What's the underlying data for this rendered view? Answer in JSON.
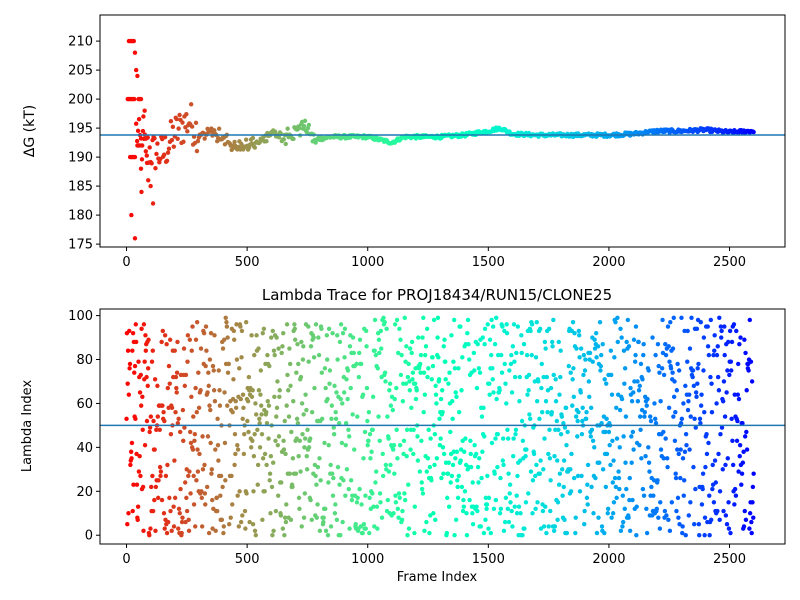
{
  "chart_data": [
    {
      "type": "scatter",
      "title": "",
      "xlabel": "",
      "ylabel": "ΔG (kT)",
      "xlim": [
        -110,
        2730
      ],
      "ylim": [
        174.5,
        214.5
      ],
      "x_ticks": [
        0,
        500,
        1000,
        1500,
        2000,
        2500
      ],
      "y_ticks": [
        175,
        180,
        185,
        190,
        195,
        200,
        205,
        210
      ],
      "x_tick_labels": [
        "0",
        "500",
        "1000",
        "1500",
        "2000",
        "2500"
      ],
      "y_tick_labels": [
        "175",
        "180",
        "185",
        "190",
        "195",
        "200",
        "205",
        "210"
      ],
      "reference_line": 193.8,
      "reference_color": "#1f77b4",
      "colormap": "rainbow (reversed: red at frame 0, violet at frame 2600)",
      "frame_range": [
        0,
        2600
      ],
      "grid": false,
      "series_trend": {
        "x": [
          0,
          30,
          60,
          100,
          150,
          200,
          260,
          300,
          350,
          400,
          450,
          500,
          550,
          600,
          650,
          700,
          740,
          780,
          850,
          900,
          1000,
          1050,
          1100,
          1150,
          1200,
          1300,
          1400,
          1500,
          1550,
          1600,
          1700,
          1800,
          1900,
          2000,
          2100,
          2200,
          2300,
          2400,
          2450,
          2500,
          2600
        ],
        "y": [
          200,
          196,
          192,
          191,
          190.5,
          194,
          196.5,
          194,
          194.5,
          193,
          192,
          191.5,
          193,
          194,
          193,
          194.5,
          195.5,
          193,
          193.5,
          193.5,
          193.5,
          193,
          192.5,
          193.5,
          193.5,
          193.5,
          193.8,
          194.5,
          195,
          194,
          193.8,
          193.8,
          193.8,
          193.8,
          194,
          194.5,
          194.5,
          194.7,
          194.5,
          194.3,
          194.5
        ]
      }
    },
    {
      "type": "scatter",
      "title": "Lambda Trace for PROJ18434/RUN15/CLONE25",
      "xlabel": "Frame Index",
      "ylabel": "Lambda Index",
      "xlim": [
        -110,
        2730
      ],
      "ylim": [
        -4,
        103
      ],
      "x_ticks": [
        0,
        500,
        1000,
        1500,
        2000,
        2500
      ],
      "y_ticks": [
        0,
        20,
        40,
        60,
        80,
        100
      ],
      "x_tick_labels": [
        "0",
        "500",
        "1000",
        "1500",
        "2000",
        "2500"
      ],
      "y_tick_labels": [
        "0",
        "20",
        "40",
        "60",
        "80",
        "100"
      ],
      "reference_line": 50,
      "reference_color": "#1f77b4",
      "colormap": "rainbow (reversed: red at frame 0, violet at frame 2600)",
      "frame_range": [
        0,
        2600
      ],
      "lambda_range": [
        0,
        99
      ],
      "grid": false
    }
  ]
}
